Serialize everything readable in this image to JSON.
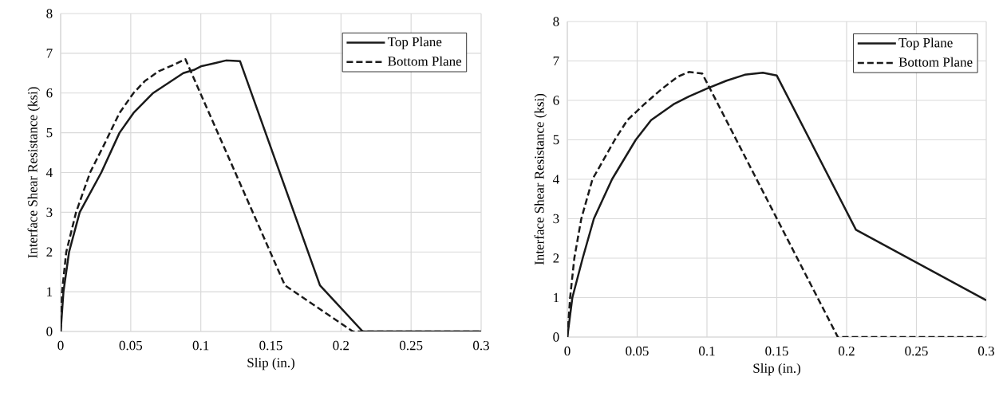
{
  "chart_data": [
    {
      "type": "line",
      "xlabel": "Slip (in.)",
      "ylabel": "Interface Shear Resistance (ksi)",
      "xlim": [
        0,
        0.3
      ],
      "ylim": [
        0,
        8
      ],
      "xticks": [
        0,
        0.05,
        0.1,
        0.15,
        0.2,
        0.25,
        0.3
      ],
      "yticks": [
        0,
        1,
        2,
        3,
        4,
        5,
        6,
        7,
        8
      ],
      "grid": true,
      "legend": "top right",
      "series": [
        {
          "name": "Top Plane",
          "color": "#1a1a1a",
          "line_style": "solid",
          "x": [
            0,
            0.002,
            0.006,
            0.0136,
            0.029,
            0.042,
            0.052,
            0.066,
            0.0875,
            0.095,
            0.1,
            0.11,
            0.118,
            0.128,
            0.185,
            0.2155,
            0.3
          ],
          "values": [
            0,
            1,
            2,
            3,
            4,
            5,
            5.5,
            6,
            6.5,
            6.58,
            6.67,
            6.75,
            6.82,
            6.8,
            1.16,
            0,
            0
          ]
        },
        {
          "name": "Bottom Plane",
          "color": "#1a1a1a",
          "line_style": "dashed",
          "x": [
            0,
            0.001,
            0.004,
            0.011,
            0.021,
            0.031,
            0.042,
            0.052,
            0.06,
            0.07,
            0.08,
            0.089,
            0.16,
            0.2085,
            0.3
          ],
          "values": [
            0,
            1,
            2,
            3,
            4,
            4.7,
            5.5,
            6,
            6.3,
            6.55,
            6.7,
            6.85,
            1.16,
            0,
            0
          ]
        }
      ]
    },
    {
      "type": "line",
      "xlabel": "Slip (in.)",
      "ylabel": "Interface Shear Resistance (ksi)",
      "xlim": [
        0,
        0.3
      ],
      "ylim": [
        0,
        8
      ],
      "xticks": [
        0,
        0.05,
        0.1,
        0.15,
        0.2,
        0.25,
        0.3
      ],
      "yticks": [
        0,
        1,
        2,
        3,
        4,
        5,
        6,
        7,
        8
      ],
      "grid": true,
      "legend": "top right",
      "series": [
        {
          "name": "Top Plane",
          "color": "#1a1a1a",
          "line_style": "solid",
          "x": [
            0,
            0.0036,
            0.011,
            0.019,
            0.032,
            0.049,
            0.06,
            0.076,
            0.087,
            0.1,
            0.114,
            0.127,
            0.14,
            0.15,
            0.2067,
            0.3
          ],
          "values": [
            0,
            1,
            2,
            3,
            4,
            5,
            5.5,
            5.9,
            6.1,
            6.3,
            6.5,
            6.65,
            6.7,
            6.63,
            2.72,
            0.93
          ]
        },
        {
          "name": "Bottom Plane",
          "color": "#1a1a1a",
          "line_style": "dashed",
          "x": [
            0,
            0.002,
            0.005,
            0.01,
            0.018,
            0.034,
            0.043,
            0.055,
            0.068,
            0.079,
            0.087,
            0.0966,
            0.1937,
            0.3
          ],
          "values": [
            0,
            1,
            2,
            3,
            4,
            5,
            5.5,
            5.9,
            6.3,
            6.6,
            6.72,
            6.68,
            0,
            0
          ]
        }
      ]
    }
  ]
}
